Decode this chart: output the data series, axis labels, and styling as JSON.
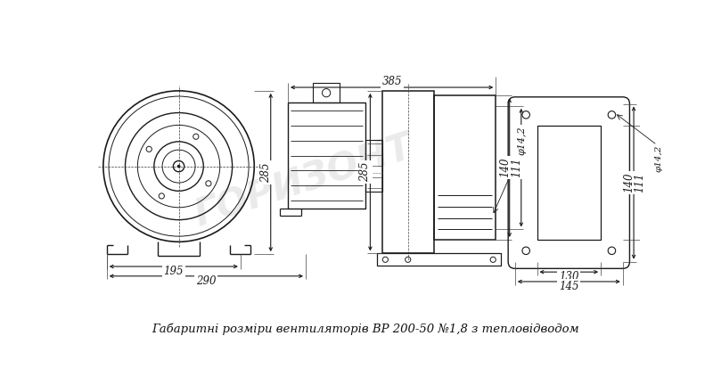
{
  "title": "Габаритні розміри вентиляторів ВР 200-50 №1,8 з тепловідводом",
  "bg_color": "#ffffff",
  "line_color": "#1a1a1a",
  "dim_color": "#1a1a1a",
  "dims": {
    "d385": "385",
    "d285": "285",
    "d195": "195",
    "d290": "290",
    "d130": "130",
    "d145": "145",
    "d140": "140",
    "d111": "111",
    "d14": "φ14,2"
  },
  "watermark": "ГОРИЗОНТ"
}
